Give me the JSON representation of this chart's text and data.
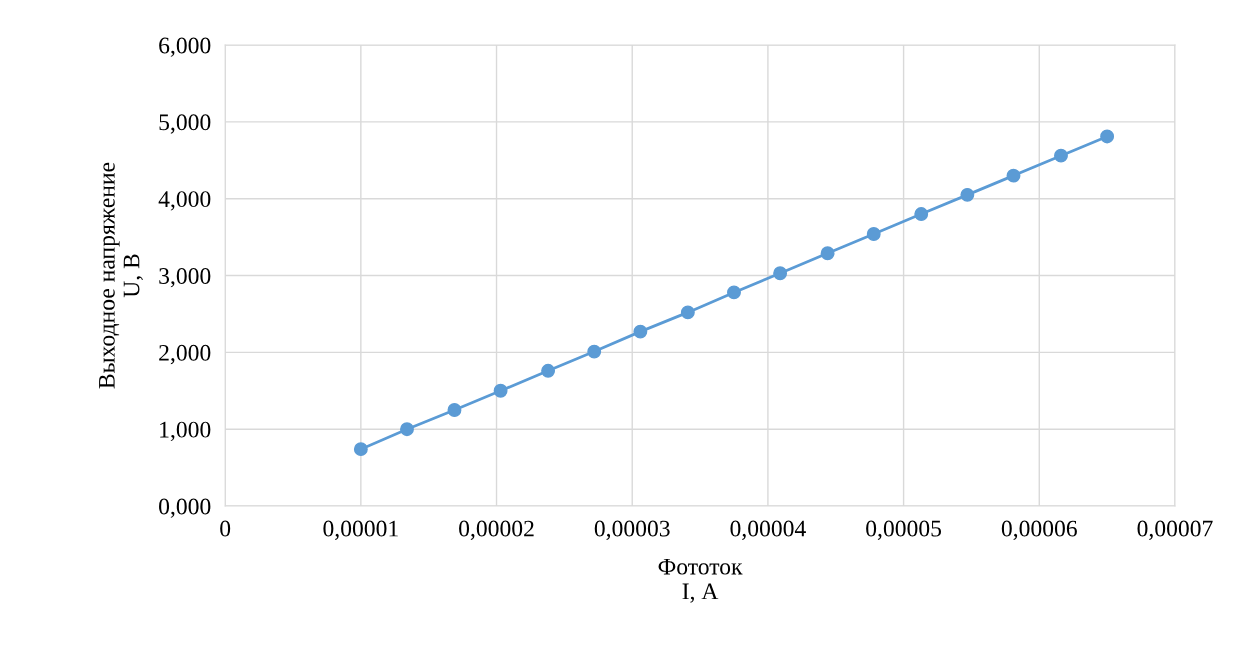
{
  "chart_data": {
    "type": "line",
    "xlabel": "Фототок\nI, А",
    "ylabel": "Выходное напряжение\nU, В",
    "x": [
      1e-05,
      1.34e-05,
      1.69e-05,
      2.03e-05,
      2.38e-05,
      2.72e-05,
      3.06e-05,
      3.41e-05,
      3.75e-05,
      4.09e-05,
      4.44e-05,
      4.78e-05,
      5.13e-05,
      5.47e-05,
      5.81e-05,
      6.16e-05,
      6.5e-05
    ],
    "series": [
      {
        "color": "#5b9bd5",
        "values": [
          0.74,
          1.0,
          1.25,
          1.5,
          1.76,
          2.01,
          2.27,
          2.52,
          2.78,
          3.03,
          3.29,
          3.54,
          3.8,
          4.05,
          4.3,
          4.56,
          4.81
        ]
      }
    ],
    "xlim": [
      0,
      7e-05
    ],
    "xticks": [
      0,
      {
        "value": 1e-05,
        "label": "0,00001"
      },
      {
        "value": 2e-05,
        "label": "0,00002"
      },
      {
        "value": 3e-05,
        "label": "0,00003"
      },
      {
        "value": 4e-05,
        "label": "0,00004"
      },
      {
        "value": 5e-05,
        "label": "0,00005"
      },
      {
        "value": 6e-05,
        "label": "0,00006"
      },
      {
        "value": 7e-05,
        "label": "0,00007"
      }
    ],
    "ylim": [
      0,
      6
    ],
    "yticks": [
      {
        "value": 0,
        "label": "0,000"
      },
      {
        "value": 1,
        "label": "1,000"
      },
      {
        "value": 2,
        "label": "2,000"
      },
      {
        "value": 3,
        "label": "3,000"
      },
      {
        "value": 4,
        "label": "4,000"
      },
      {
        "value": 5,
        "label": "5,000"
      },
      {
        "value": 6,
        "label": "6,000"
      }
    ],
    "grid": true,
    "marker": "circle",
    "line_style": "solid"
  }
}
